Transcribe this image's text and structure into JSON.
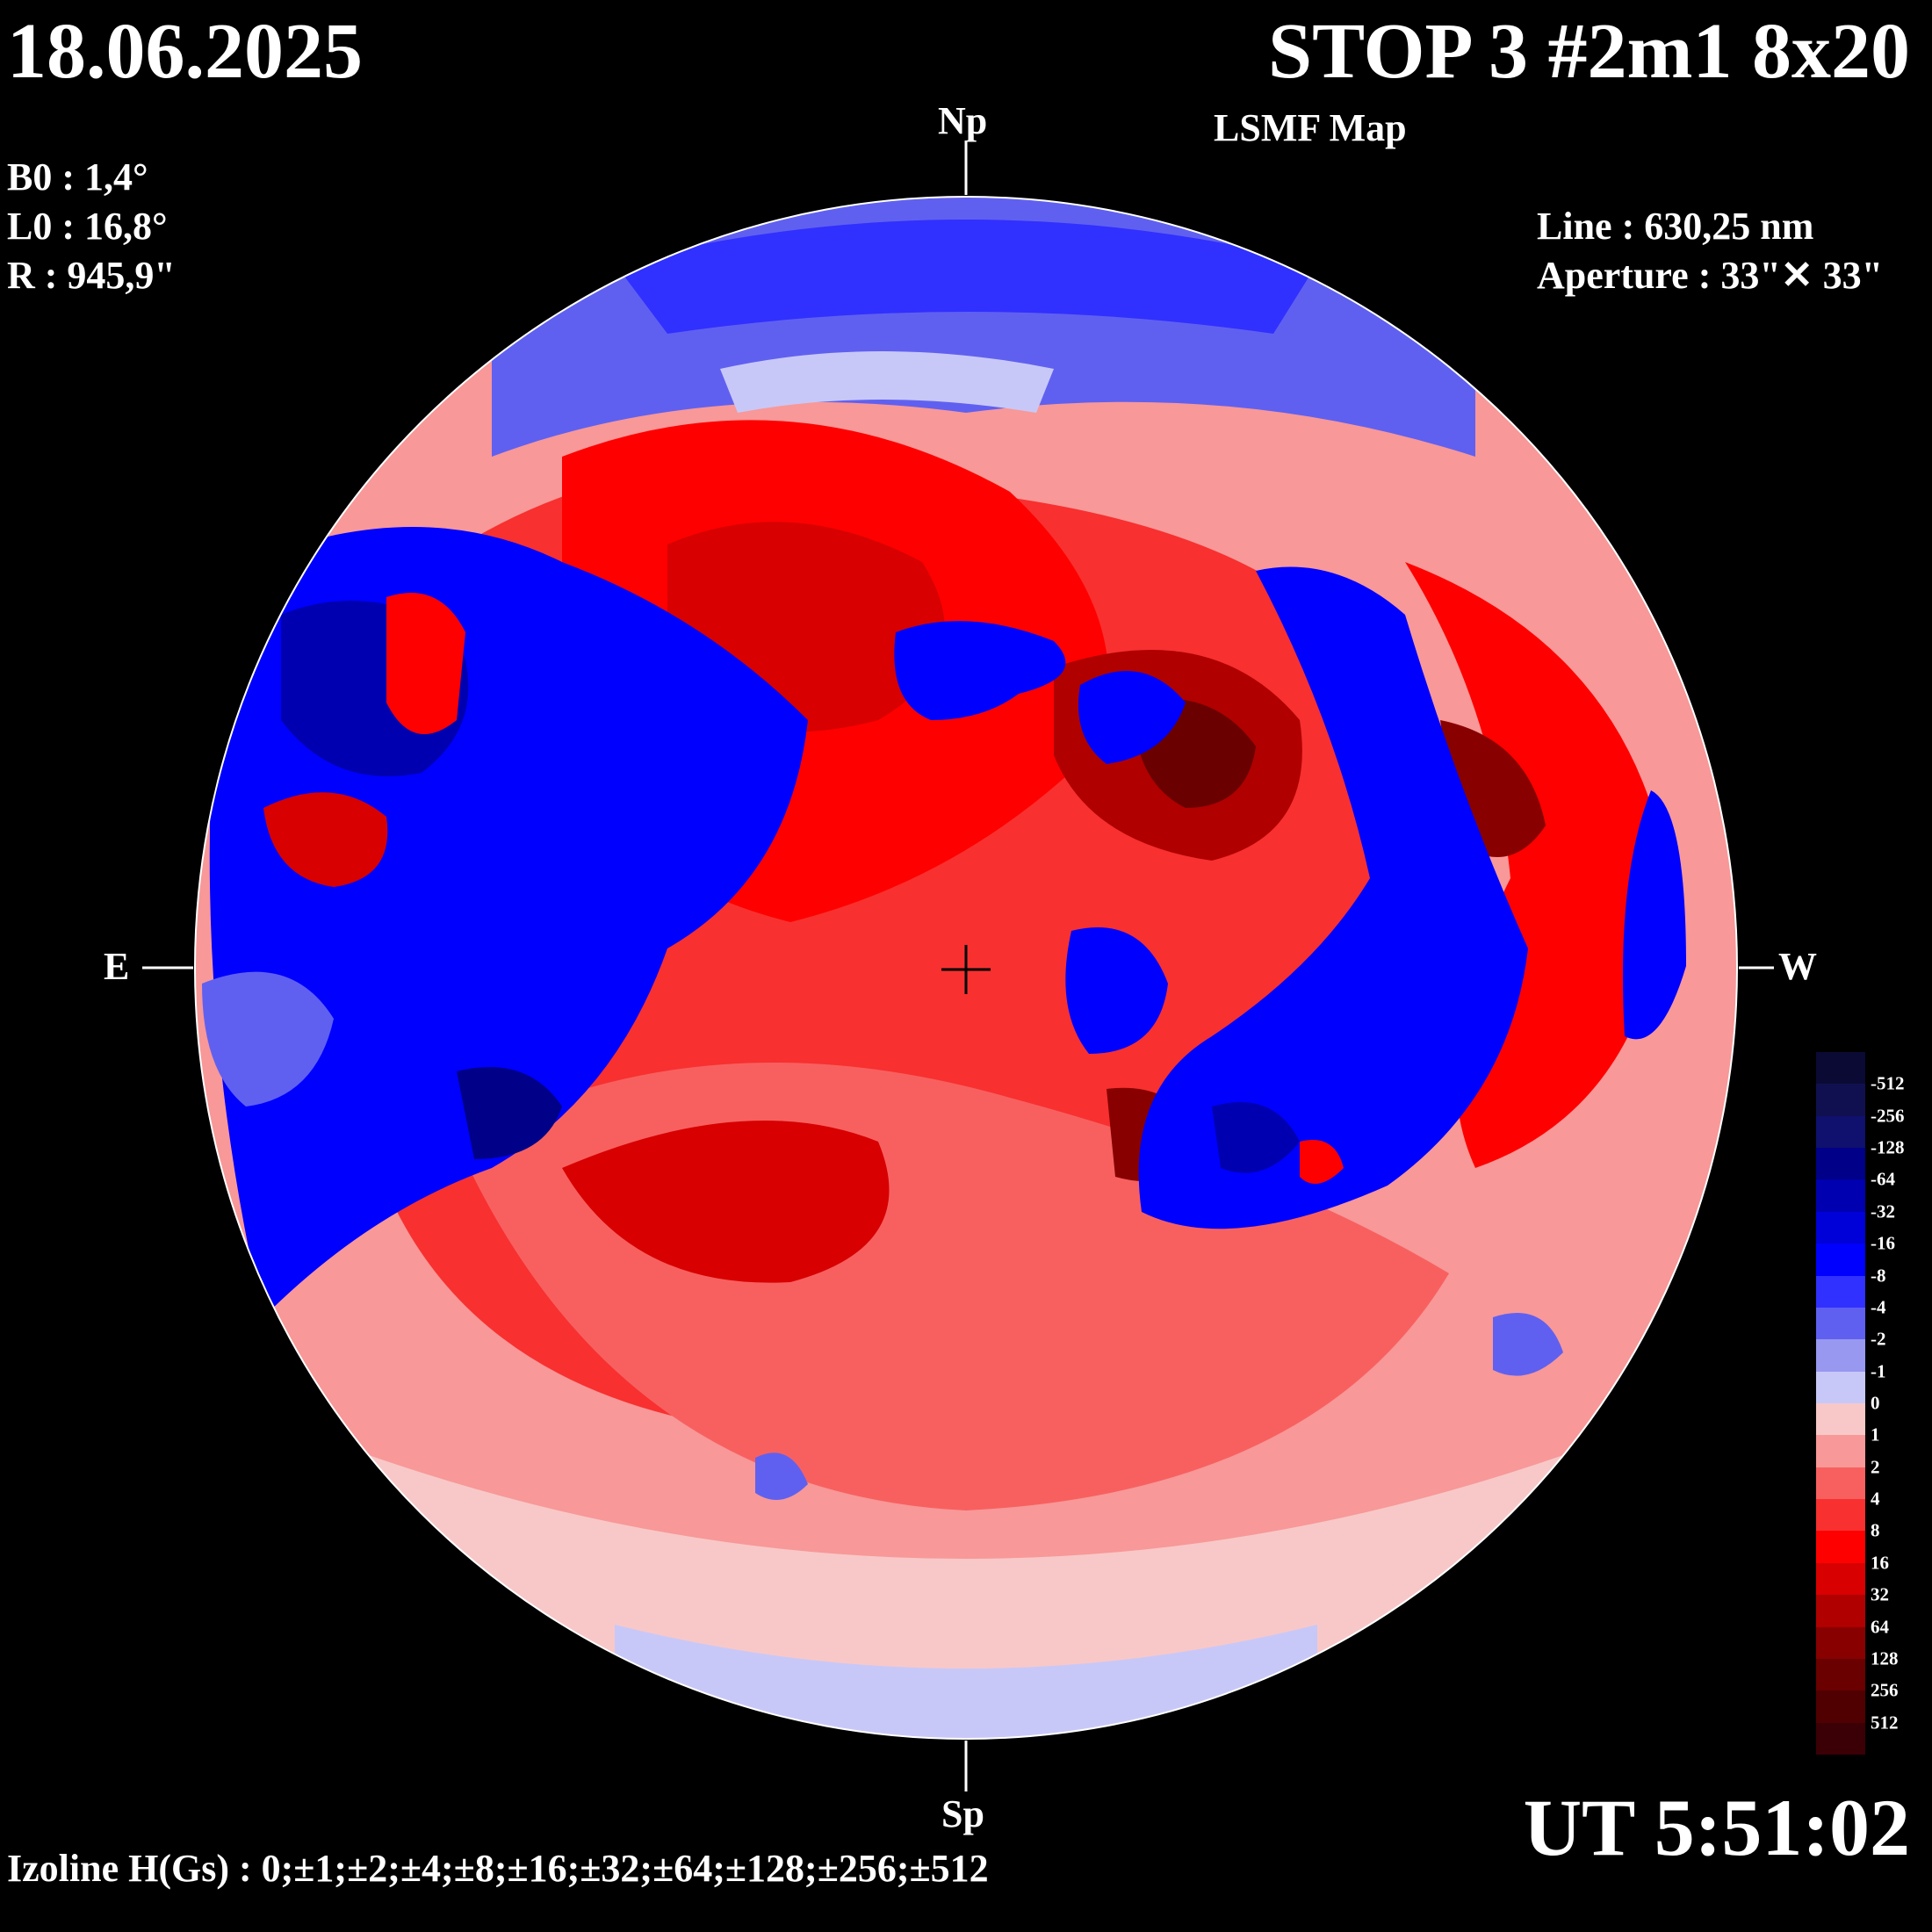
{
  "header": {
    "date": "18.06.2025",
    "title": "STOP 3 #2m1 8x20",
    "subtitle": "LSMF  Map"
  },
  "params": {
    "b0": "B0 : 1,4°",
    "l0": "L0 : 16,8°",
    "r": "R  : 945,9\""
  },
  "instrument": {
    "line": "Line :  630,25 nm",
    "aperture": "Aperture : 33\"✕ 33\""
  },
  "directions": {
    "north": "Np",
    "south": "Sp",
    "east": "E",
    "west": "W"
  },
  "time": "UT 5:51:02",
  "izoline": "Izoline H(Gs) : 0;±1;±2;±4;±8;±16;±32;±64;±128;±256;±512",
  "legend": {
    "labels": [
      "-512",
      "-256",
      "-128",
      "-64",
      "-32",
      "-16",
      "-8",
      "-4",
      "-2",
      "-1",
      "0",
      "1",
      "2",
      "4",
      "8",
      "16",
      "32",
      "64",
      "128",
      "256",
      "512"
    ],
    "colors": [
      "#0a0a35",
      "#101050",
      "#10106e",
      "#000088",
      "#0000b0",
      "#0000d8",
      "#0000ff",
      "#3030ff",
      "#6060f0",
      "#9898f0",
      "#c8c8f8",
      "#f8c8c8",
      "#f89898",
      "#f86060",
      "#f83030",
      "#ff0000",
      "#d80000",
      "#b00000",
      "#880000",
      "#6a0000",
      "#500000",
      "#3a0005"
    ]
  }
}
